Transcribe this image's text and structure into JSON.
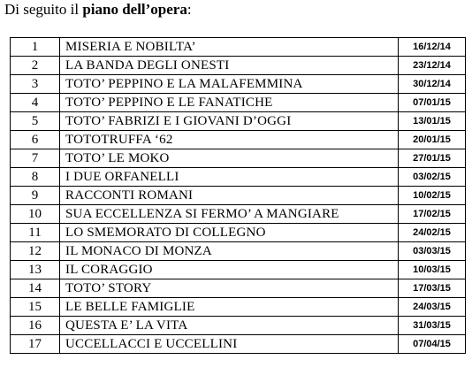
{
  "intro": {
    "prefix": "Di seguito il ",
    "bold": "piano dell’opera",
    "suffix": ":"
  },
  "rows": [
    {
      "num": "1",
      "title": "MISERIA E NOBILTA’",
      "date": "16/12/14"
    },
    {
      "num": "2",
      "title": "LA BANDA DEGLI ONESTI",
      "date": "23/12/14"
    },
    {
      "num": "3",
      "title": "TOTO’ PEPPINO E LA MALAFEMMINA",
      "date": "30/12/14"
    },
    {
      "num": "4",
      "title": "TOTO’ PEPPINO E LE FANATICHE",
      "date": "07/01/15"
    },
    {
      "num": "5",
      "title": "TOTO’ FABRIZI E I GIOVANI D’OGGI",
      "date": "13/01/15"
    },
    {
      "num": "6",
      "title": "TOTOTRUFFA ‘62",
      "date": "20/01/15"
    },
    {
      "num": "7",
      "title": "TOTO’ LE MOKO",
      "date": "27/01/15"
    },
    {
      "num": "8",
      "title": "I DUE ORFANELLI",
      "date": "03/02/15"
    },
    {
      "num": "9",
      "title": "RACCONTI ROMANI",
      "date": "10/02/15"
    },
    {
      "num": "10",
      "title": "SUA ECCELLENZA SI FERMO’ A MANGIARE",
      "date": "17/02/15"
    },
    {
      "num": "11",
      "title": "LO SMEMORATO DI COLLEGNO",
      "date": "24/02/15"
    },
    {
      "num": "12",
      "title": "IL MONACO DI MONZA",
      "date": "03/03/15"
    },
    {
      "num": "13",
      "title": "IL CORAGGIO",
      "date": "10/03/15"
    },
    {
      "num": "14",
      "title": "TOTO’ STORY",
      "date": "17/03/15"
    },
    {
      "num": "15",
      "title": "LE BELLE FAMIGLIE",
      "date": "24/03/15"
    },
    {
      "num": "16",
      "title": "QUESTA E’ LA VITA",
      "date": "31/03/15"
    },
    {
      "num": "17",
      "title": "UCCELLACCI E UCCELLINI",
      "date": "07/04/15"
    }
  ]
}
